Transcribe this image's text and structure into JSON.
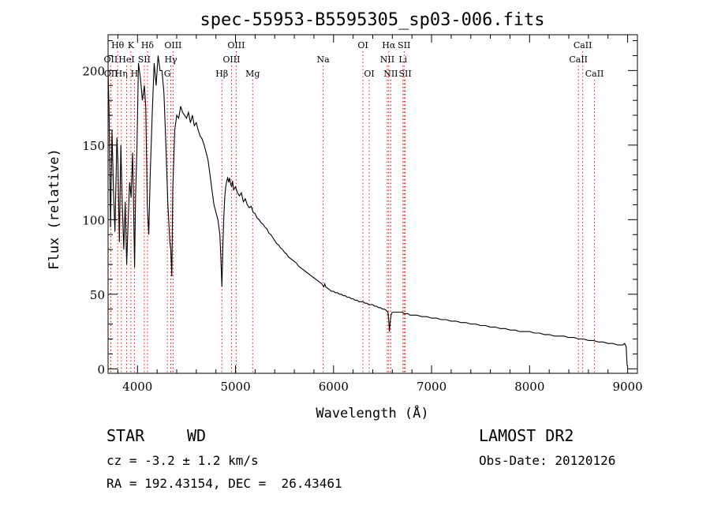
{
  "chart_data": {
    "type": "line",
    "title": "spec-55953-B5595305_sp03-006.fits",
    "xlabel": "Wavelength (Å)",
    "ylabel": "Flux (relative)",
    "xlim": [
      3700,
      9100
    ],
    "ylim": [
      -3,
      224
    ],
    "xticks": [
      4000,
      5000,
      6000,
      7000,
      8000,
      9000
    ],
    "yticks": [
      0,
      50,
      100,
      150,
      200
    ],
    "series": [
      {
        "name": "spectrum",
        "x": [
          3700,
          3710,
          3725,
          3740,
          3755,
          3770,
          3790,
          3800,
          3815,
          3830,
          3845,
          3860,
          3875,
          3890,
          3905,
          3920,
          3935,
          3950,
          3960,
          3970,
          3980,
          3995,
          4010,
          4030,
          4050,
          4070,
          4085,
          4100,
          4115,
          4130,
          4150,
          4170,
          4190,
          4210,
          4230,
          4250,
          4270,
          4290,
          4310,
          4330,
          4340,
          4350,
          4360,
          4380,
          4400,
          4420,
          4440,
          4460,
          4480,
          4500,
          4520,
          4540,
          4560,
          4580,
          4600,
          4620,
          4640,
          4660,
          4680,
          4700,
          4720,
          4740,
          4760,
          4780,
          4800,
          4820,
          4840,
          4850,
          4861,
          4870,
          4880,
          4890,
          4900,
          4910,
          4920,
          4930,
          4940,
          4950,
          4960,
          4970,
          4980,
          5000,
          5020,
          5040,
          5060,
          5080,
          5100,
          5120,
          5140,
          5160,
          5180,
          5200,
          5220,
          5240,
          5260,
          5280,
          5300,
          5320,
          5340,
          5360,
          5380,
          5400,
          5420,
          5440,
          5460,
          5480,
          5500,
          5520,
          5540,
          5560,
          5580,
          5600,
          5620,
          5640,
          5660,
          5680,
          5700,
          5720,
          5740,
          5760,
          5780,
          5800,
          5820,
          5840,
          5860,
          5880,
          5890,
          5900,
          5910,
          5920,
          5940,
          5960,
          5980,
          6000,
          6020,
          6040,
          6060,
          6080,
          6100,
          6120,
          6140,
          6160,
          6180,
          6200,
          6220,
          6240,
          6260,
          6280,
          6300,
          6320,
          6340,
          6360,
          6380,
          6400,
          6420,
          6440,
          6460,
          6480,
          6500,
          6520,
          6540,
          6555,
          6563,
          6570,
          6580,
          6590,
          6600,
          6620,
          6640,
          6660,
          6680,
          6700,
          6720,
          6740,
          6760,
          6780,
          6800,
          6850,
          6900,
          6950,
          7000,
          7050,
          7100,
          7150,
          7200,
          7250,
          7300,
          7350,
          7400,
          7450,
          7500,
          7550,
          7600,
          7650,
          7700,
          7750,
          7800,
          7850,
          7900,
          7950,
          8000,
          8050,
          8100,
          8150,
          8200,
          8250,
          8300,
          8350,
          8400,
          8450,
          8500,
          8550,
          8600,
          8650,
          8700,
          8750,
          8800,
          8850,
          8900,
          8950,
          8970,
          8985,
          8995
        ],
        "y": [
          200,
          175,
          95,
          160,
          120,
          92,
          155,
          140,
          85,
          150,
          110,
          80,
          112,
          70,
          100,
          125,
          115,
          145,
          110,
          68,
          115,
          150,
          205,
          195,
          180,
          190,
          175,
          110,
          90,
          130,
          170,
          205,
          190,
          210,
          200,
          200,
          185,
          150,
          110,
          85,
          80,
          62,
          120,
          160,
          170,
          168,
          176,
          172,
          170,
          168,
          172,
          165,
          170,
          163,
          165,
          160,
          156,
          154,
          150,
          145,
          140,
          130,
          120,
          110,
          105,
          100,
          90,
          75,
          55,
          80,
          100,
          115,
          122,
          126,
          128,
          125,
          128,
          124,
          122,
          126,
          120,
          122,
          118,
          116,
          118,
          112,
          114,
          110,
          108,
          109,
          105,
          104,
          101,
          100,
          98,
          97,
          95,
          94,
          91,
          90,
          88,
          86,
          84,
          83,
          81,
          80,
          78,
          77,
          75,
          74,
          73,
          72,
          71,
          69,
          68,
          67,
          66,
          65,
          64,
          63,
          62,
          61,
          60,
          59,
          58,
          57,
          56,
          55,
          57,
          55,
          54,
          53,
          52,
          52,
          51,
          51,
          50,
          50,
          49,
          49,
          48,
          48,
          47,
          47,
          46,
          46,
          45,
          45,
          45,
          44,
          44,
          43,
          43,
          43,
          42,
          42,
          41,
          41,
          40,
          40,
          39,
          38,
          32,
          25,
          33,
          37,
          38,
          38,
          38,
          38,
          38,
          38,
          37,
          37,
          37,
          36,
          36,
          36,
          35,
          35,
          34,
          34,
          33,
          33,
          32,
          32,
          31,
          31,
          30,
          30,
          29,
          29,
          28,
          28,
          27,
          27,
          26,
          26,
          25,
          25,
          25,
          24,
          24,
          23,
          23,
          22,
          22,
          22,
          21,
          21,
          20,
          20,
          19,
          19,
          18,
          18,
          17,
          17,
          16,
          16,
          17,
          15,
          2
        ]
      }
    ],
    "lines": [
      {
        "label": "Hθ",
        "x": 3798,
        "row": 0
      },
      {
        "label": "OII",
        "x": 3727,
        "row": 1
      },
      {
        "label": "OII",
        "x": 3729,
        "row": 2
      },
      {
        "label": "Hη",
        "x": 3835,
        "row": 2
      },
      {
        "label": "K",
        "x": 3933,
        "row": 0
      },
      {
        "label": "HeI",
        "x": 3889,
        "row": 1
      },
      {
        "label": "SII",
        "x": 4069,
        "row": 1
      },
      {
        "label": "H",
        "x": 3969,
        "row": 2
      },
      {
        "label": "Hδ",
        "x": 4102,
        "row": 0
      },
      {
        "label": "OIII",
        "x": 4363,
        "row": 0
      },
      {
        "label": "Hγ",
        "x": 4340,
        "row": 1
      },
      {
        "label": "G",
        "x": 4305,
        "row": 2
      },
      {
        "label": "Hβ",
        "x": 4861,
        "row": 2
      },
      {
        "label": "OIII",
        "x": 5007,
        "row": 0
      },
      {
        "label": "OIII",
        "x": 4959,
        "row": 1
      },
      {
        "label": "Mg",
        "x": 5175,
        "row": 2
      },
      {
        "label": "Na",
        "x": 5894,
        "row": 1
      },
      {
        "label": "OI",
        "x": 6300,
        "row": 0
      },
      {
        "label": "OI",
        "x": 6364,
        "row": 2
      },
      {
        "label": "Hα",
        "x": 6563,
        "row": 0
      },
      {
        "label": "SII",
        "x": 6720,
        "row": 0
      },
      {
        "label": "NII",
        "x": 6548,
        "row": 1
      },
      {
        "label": "Li",
        "x": 6708,
        "row": 1
      },
      {
        "label": "NII",
        "x": 6584,
        "row": 2
      },
      {
        "label": "SII",
        "x": 6731,
        "row": 2
      },
      {
        "label": "CaII",
        "x": 8542,
        "row": 0
      },
      {
        "label": "CaII",
        "x": 8498,
        "row": 1
      },
      {
        "label": "CaII",
        "x": 8662,
        "row": 2
      }
    ]
  },
  "info": {
    "object_class": "STAR",
    "subclass": "WD",
    "survey": "LAMOST DR2",
    "cz": "cz = -3.2 ± 1.2 km/s",
    "obs_date": "Obs-Date: 20120126",
    "coords": "RA = 192.43154, DEC =  26.43461"
  },
  "colors": {
    "line_marker": "#ff0000",
    "spectrum": "#000000"
  }
}
